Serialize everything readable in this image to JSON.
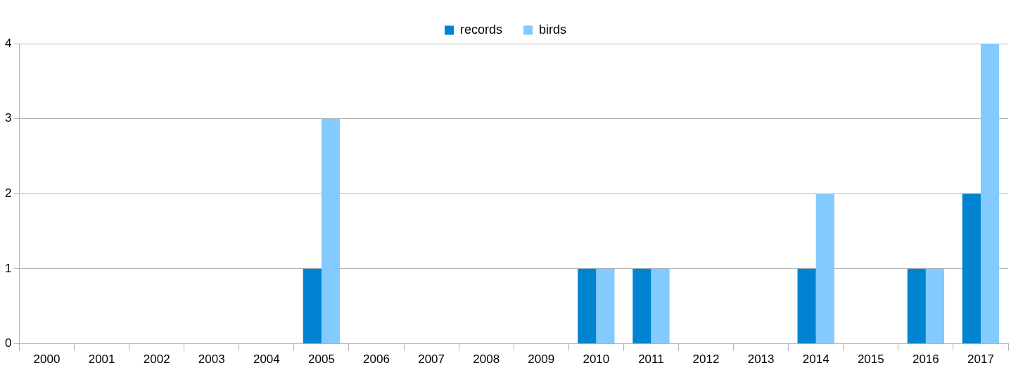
{
  "chart_data": {
    "type": "bar",
    "categories": [
      "2000",
      "2001",
      "2002",
      "2003",
      "2004",
      "2005",
      "2006",
      "2007",
      "2008",
      "2009",
      "2010",
      "2011",
      "2012",
      "2013",
      "2014",
      "2015",
      "2016",
      "2017"
    ],
    "series": [
      {
        "name": "records",
        "color": "#0084d1",
        "values": [
          0,
          0,
          0,
          0,
          0,
          1,
          0,
          0,
          0,
          0,
          1,
          1,
          0,
          0,
          1,
          0,
          1,
          2
        ]
      },
      {
        "name": "birds",
        "color": "#83caff",
        "values": [
          0,
          0,
          0,
          0,
          0,
          3,
          0,
          0,
          0,
          0,
          1,
          1,
          0,
          0,
          2,
          0,
          1,
          4
        ]
      }
    ],
    "ylim": [
      0,
      4
    ],
    "yticks": [
      0,
      1,
      2,
      3,
      4
    ],
    "grid": "y",
    "legend": "top"
  }
}
